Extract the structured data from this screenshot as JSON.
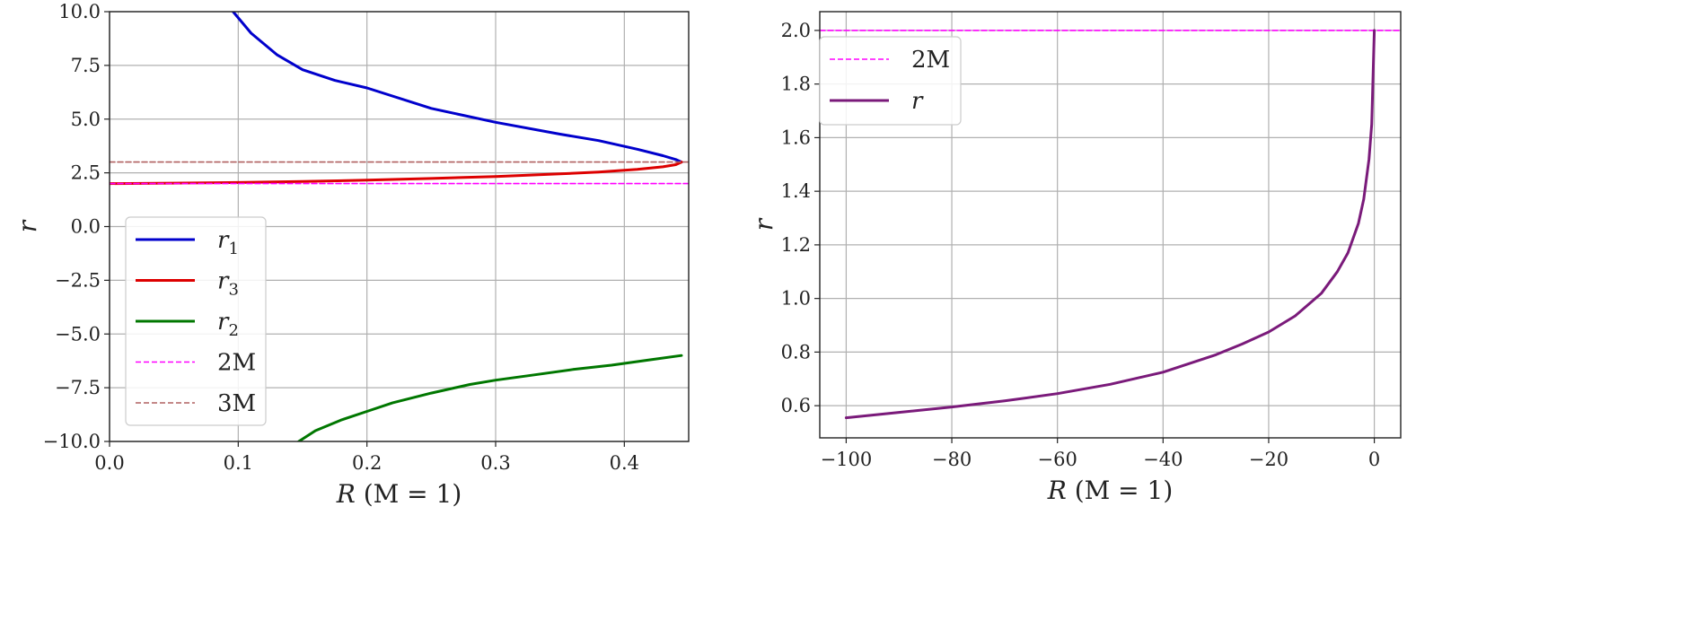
{
  "chart_data": [
    {
      "type": "line",
      "xlabel": "R (M = 1)",
      "ylabel": "r",
      "xlim": [
        0.0,
        0.45
      ],
      "ylim": [
        -10.0,
        10.0
      ],
      "x_ticks": [
        "0.0",
        "0.1",
        "0.2",
        "0.3",
        "0.4"
      ],
      "y_ticks": [
        "−10.0",
        "−7.5",
        "−5.0",
        "−2.5",
        "0.0",
        "2.5",
        "5.0",
        "7.5",
        "10.0"
      ],
      "grid": true,
      "legend_position": "lower-left",
      "series": [
        {
          "name": "r",
          "subscript": "1",
          "color": "#0000cc",
          "style": "solid",
          "x": [
            0.096,
            0.11,
            0.13,
            0.15,
            0.175,
            0.2,
            0.25,
            0.3,
            0.35,
            0.38,
            0.41,
            0.43,
            0.44,
            0.4444
          ],
          "y": [
            10.0,
            9.0,
            8.0,
            7.3,
            6.8,
            6.45,
            5.5,
            4.85,
            4.3,
            4.0,
            3.6,
            3.3,
            3.12,
            3.0
          ]
        },
        {
          "name": "r",
          "subscript": "3",
          "color": "#dd0000",
          "style": "solid",
          "x": [
            0.0,
            0.05,
            0.1,
            0.15,
            0.2,
            0.25,
            0.3,
            0.35,
            0.38,
            0.41,
            0.43,
            0.44,
            0.4444
          ],
          "y": [
            2.0,
            2.02,
            2.05,
            2.1,
            2.16,
            2.24,
            2.33,
            2.45,
            2.54,
            2.66,
            2.78,
            2.88,
            3.0
          ]
        },
        {
          "name": "r",
          "subscript": "2",
          "color": "#007700",
          "style": "solid",
          "x": [
            0.147,
            0.16,
            0.18,
            0.2,
            0.22,
            0.25,
            0.28,
            0.3,
            0.33,
            0.36,
            0.39,
            0.42,
            0.4444
          ],
          "y": [
            -10.0,
            -9.5,
            -9.0,
            -8.6,
            -8.2,
            -7.75,
            -7.35,
            -7.15,
            -6.9,
            -6.65,
            -6.45,
            -6.2,
            -6.0
          ]
        },
        {
          "name": "2M",
          "color": "#ff00ff",
          "style": "dashed",
          "x": [
            0.0,
            0.45
          ],
          "y": [
            2.0,
            2.0
          ]
        },
        {
          "name": "3M",
          "color": "#b06060",
          "style": "dashed",
          "x": [
            0.0,
            0.45
          ],
          "y": [
            3.0,
            3.0
          ]
        }
      ]
    },
    {
      "type": "line",
      "xlabel": "R (M = 1)",
      "ylabel": "r",
      "xlim": [
        -105,
        5
      ],
      "ylim": [
        0.48,
        2.07
      ],
      "x_ticks": [
        "−100",
        "−80",
        "−60",
        "−40",
        "−20",
        "0"
      ],
      "y_ticks": [
        "0.6",
        "0.8",
        "1.0",
        "1.2",
        "1.4",
        "1.6",
        "1.8",
        "2.0"
      ],
      "grid": true,
      "legend_position": "upper-left",
      "series": [
        {
          "name": "2M",
          "color": "#ff00ff",
          "style": "dashed",
          "x": [
            -105,
            5
          ],
          "y": [
            2.0,
            2.0
          ]
        },
        {
          "name": "r",
          "color": "#7a1a7a",
          "style": "solid",
          "x": [
            -100,
            -90,
            -80,
            -70,
            -60,
            -50,
            -40,
            -30,
            -25,
            -20,
            -15,
            -10,
            -7,
            -5,
            -3,
            -2,
            -1,
            -0.5,
            0
          ],
          "y": [
            0.555,
            0.575,
            0.595,
            0.618,
            0.645,
            0.68,
            0.725,
            0.79,
            0.83,
            0.875,
            0.935,
            1.02,
            1.1,
            1.17,
            1.28,
            1.37,
            1.52,
            1.65,
            2.0
          ]
        }
      ]
    }
  ]
}
